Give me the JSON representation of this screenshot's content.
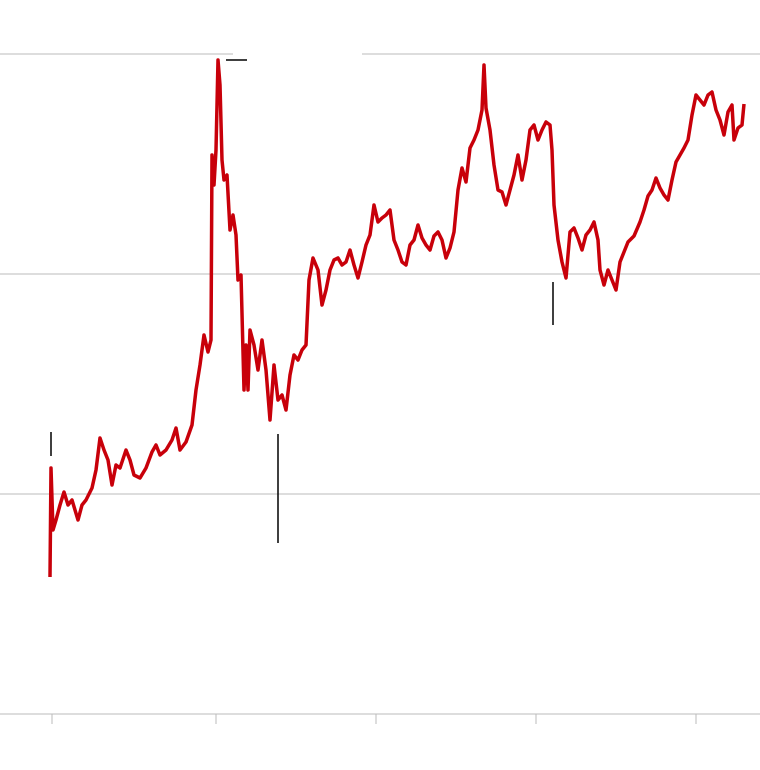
{
  "chart_data": {
    "type": "line",
    "color": "#c8000a",
    "grid": true,
    "xlim": [
      0,
      760
    ],
    "xticks": [
      52,
      216,
      376,
      536,
      696
    ],
    "ylim": [
      0,
      660
    ],
    "yticks": [
      0,
      220,
      440,
      660
    ],
    "x": [
      50,
      51,
      53,
      56,
      60,
      64,
      68,
      72,
      78,
      82,
      86,
      92,
      96,
      100,
      104,
      108,
      112,
      116,
      120,
      126,
      130,
      134,
      140,
      146,
      152,
      156,
      160,
      166,
      172,
      176,
      180,
      186,
      192,
      196,
      200,
      204,
      208,
      211,
      212,
      214,
      216,
      218,
      220,
      222,
      224,
      227,
      230,
      233,
      236,
      238,
      241,
      244,
      246,
      248,
      250,
      254,
      258,
      262,
      266,
      270,
      274,
      278,
      282,
      286,
      290,
      294,
      298,
      302,
      306,
      309,
      313,
      318,
      322,
      326,
      330,
      334,
      338,
      342,
      346,
      350,
      354,
      358,
      362,
      366,
      370,
      374,
      378,
      382,
      386,
      390,
      394,
      398,
      402,
      406,
      410,
      414,
      418,
      422,
      426,
      430,
      434,
      438,
      442,
      446,
      450,
      454,
      458,
      462,
      466,
      470,
      474,
      478,
      482,
      484,
      486,
      490,
      494,
      498,
      502,
      506,
      510,
      514,
      518,
      522,
      526,
      530,
      534,
      538,
      542,
      546,
      550,
      552,
      554,
      558,
      562,
      566,
      570,
      574,
      578,
      582,
      586,
      590,
      594,
      598,
      600,
      604,
      608,
      612,
      616,
      620,
      624,
      628,
      634,
      640,
      644,
      648,
      652,
      656,
      660,
      664,
      668,
      672,
      676,
      680,
      684,
      688,
      692,
      696,
      700,
      704,
      708,
      712,
      716,
      720,
      724,
      728,
      732,
      734,
      738,
      742,
      744
    ],
    "values": [
      137,
      246,
      184,
      194,
      209,
      222,
      209,
      214,
      194,
      209,
      214,
      226,
      244,
      276,
      264,
      254,
      229,
      249,
      246,
      264,
      254,
      239,
      236,
      246,
      262,
      269,
      259,
      264,
      274,
      286,
      264,
      272,
      289,
      324,
      349,
      379,
      362,
      374,
      559,
      529,
      564,
      654,
      629,
      554,
      534,
      539,
      484,
      499,
      479,
      434,
      439,
      324,
      369,
      324,
      384,
      369,
      344,
      374,
      344,
      294,
      349,
      314,
      319,
      304,
      339,
      359,
      354,
      364,
      369,
      434,
      456,
      444,
      409,
      424,
      444,
      454,
      456,
      449,
      452,
      464,
      449,
      436,
      452,
      469,
      479,
      509,
      492,
      496,
      499,
      504,
      474,
      464,
      452,
      449,
      469,
      474,
      489,
      476,
      469,
      464,
      478,
      482,
      474,
      456,
      466,
      482,
      524,
      546,
      532,
      566,
      574,
      584,
      604,
      649,
      606,
      584,
      549,
      524,
      522,
      509,
      524,
      539,
      559,
      534,
      554,
      584,
      589,
      574,
      584,
      592,
      589,
      564,
      509,
      474,
      452,
      436,
      482,
      486,
      476,
      464,
      479,
      484,
      492,
      474,
      444,
      429,
      444,
      434,
      424,
      452,
      462,
      472,
      478,
      492,
      504,
      518,
      524,
      536,
      526,
      519,
      514,
      534,
      552,
      559,
      566,
      574,
      599,
      619,
      614,
      609,
      619,
      622,
      604,
      594,
      579,
      602,
      609,
      574,
      586,
      589,
      610
    ]
  }
}
